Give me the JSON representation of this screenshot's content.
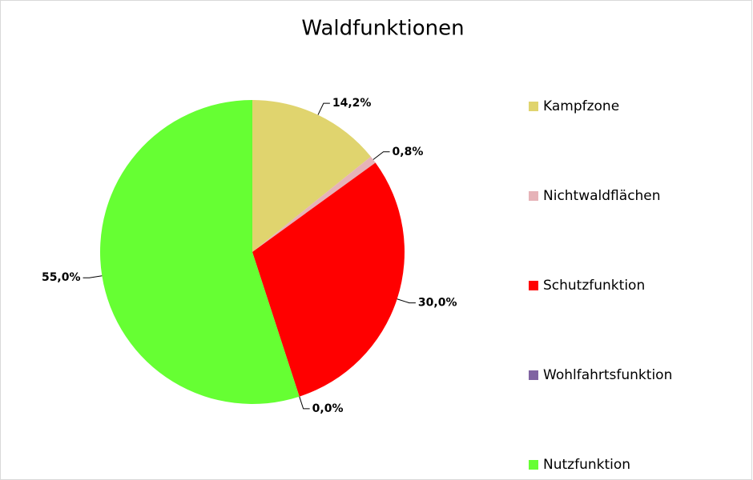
{
  "chart_data": {
    "type": "pie",
    "title": "Waldfunktionen",
    "categories": [
      "Kampfzone",
      "Nichtwaldflächen",
      "Schutzfunktion",
      "Wohlfahrtsfunktion",
      "Nutzfunktion"
    ],
    "values": [
      14.2,
      0.8,
      30.0,
      0.0,
      55.0
    ],
    "value_labels": [
      "14,2%",
      "0,8%",
      "30,0%",
      "0,0%",
      "55,0%"
    ],
    "colors": [
      "#e0d46e",
      "#e6b3b8",
      "#ff0000",
      "#8064a2",
      "#66ff33"
    ],
    "legend": "right"
  }
}
